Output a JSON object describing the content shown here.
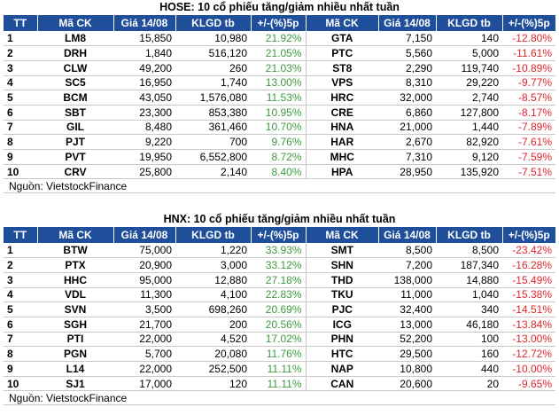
{
  "headers": [
    "TT",
    "Mã CK",
    "Giá 14/08",
    "KLGD tb",
    "+/-(%)5p",
    "Mã CK",
    "Giá 14/08",
    "KLGD tb",
    "+/-(%)5p"
  ],
  "hose": {
    "title": "HOSE: 10 cổ phiếu tăng/giảm nhiều nhất tuần",
    "source": "Nguồn: VietstockFinance",
    "rows": [
      {
        "tt": "1",
        "up_code": "LM8",
        "up_price": "15,850",
        "up_vol": "10,980",
        "up_pct": "21.92%",
        "dn_code": "GTA",
        "dn_price": "7,150",
        "dn_vol": "140",
        "dn_pct": "-12.80%"
      },
      {
        "tt": "2",
        "up_code": "DRH",
        "up_price": "1,840",
        "up_vol": "516,120",
        "up_pct": "21.05%",
        "dn_code": "PTC",
        "dn_price": "5,560",
        "dn_vol": "5,000",
        "dn_pct": "-11.61%"
      },
      {
        "tt": "3",
        "up_code": "CLW",
        "up_price": "49,200",
        "up_vol": "260",
        "up_pct": "21.03%",
        "dn_code": "ST8",
        "dn_price": "2,290",
        "dn_vol": "119,740",
        "dn_pct": "-10.89%"
      },
      {
        "tt": "4",
        "up_code": "SC5",
        "up_price": "16,950",
        "up_vol": "1,740",
        "up_pct": "13.00%",
        "dn_code": "VPS",
        "dn_price": "8,310",
        "dn_vol": "29,220",
        "dn_pct": "-9.77%"
      },
      {
        "tt": "5",
        "up_code": "BCM",
        "up_price": "43,050",
        "up_vol": "1,576,080",
        "up_pct": "11.53%",
        "dn_code": "HRC",
        "dn_price": "32,000",
        "dn_vol": "2,740",
        "dn_pct": "-8.57%"
      },
      {
        "tt": "6",
        "up_code": "SBT",
        "up_price": "23,300",
        "up_vol": "853,380",
        "up_pct": "10.95%",
        "dn_code": "CRE",
        "dn_price": "6,860",
        "dn_vol": "127,800",
        "dn_pct": "-8.17%"
      },
      {
        "tt": "7",
        "up_code": "GIL",
        "up_price": "8,480",
        "up_vol": "361,460",
        "up_pct": "10.70%",
        "dn_code": "HNA",
        "dn_price": "21,000",
        "dn_vol": "1,440",
        "dn_pct": "-7.89%"
      },
      {
        "tt": "8",
        "up_code": "PJT",
        "up_price": "9,220",
        "up_vol": "700",
        "up_pct": "9.76%",
        "dn_code": "HAR",
        "dn_price": "2,670",
        "dn_vol": "82,920",
        "dn_pct": "-7.61%"
      },
      {
        "tt": "9",
        "up_code": "PVT",
        "up_price": "19,950",
        "up_vol": "6,552,800",
        "up_pct": "8.72%",
        "dn_code": "MHC",
        "dn_price": "7,310",
        "dn_vol": "9,120",
        "dn_pct": "-7.59%"
      },
      {
        "tt": "10",
        "up_code": "CRV",
        "up_price": "25,800",
        "up_vol": "2,140",
        "up_pct": "8.40%",
        "dn_code": "HPA",
        "dn_price": "28,950",
        "dn_vol": "135,920",
        "dn_pct": "-7.51%"
      }
    ]
  },
  "hnx": {
    "title": "HNX: 10 cổ phiếu tăng/giảm nhiều nhất tuần",
    "source": "Nguồn: VietstockFinance",
    "rows": [
      {
        "tt": "1",
        "up_code": "BTW",
        "up_price": "75,000",
        "up_vol": "1,220",
        "up_pct": "33.93%",
        "dn_code": "SMT",
        "dn_price": "8,500",
        "dn_vol": "8,500",
        "dn_pct": "-23.42%"
      },
      {
        "tt": "2",
        "up_code": "PTX",
        "up_price": "20,900",
        "up_vol": "3,000",
        "up_pct": "33.12%",
        "dn_code": "SHN",
        "dn_price": "7,200",
        "dn_vol": "187,340",
        "dn_pct": "-16.28%"
      },
      {
        "tt": "3",
        "up_code": "HHC",
        "up_price": "95,000",
        "up_vol": "12,880",
        "up_pct": "27.18%",
        "dn_code": "THD",
        "dn_price": "138,000",
        "dn_vol": "14,880",
        "dn_pct": "-15.49%"
      },
      {
        "tt": "4",
        "up_code": "VDL",
        "up_price": "11,300",
        "up_vol": "4,100",
        "up_pct": "22.83%",
        "dn_code": "TKU",
        "dn_price": "11,000",
        "dn_vol": "1,040",
        "dn_pct": "-15.38%"
      },
      {
        "tt": "5",
        "up_code": "SVN",
        "up_price": "3,500",
        "up_vol": "698,260",
        "up_pct": "20.69%",
        "dn_code": "PJC",
        "dn_price": "32,400",
        "dn_vol": "340",
        "dn_pct": "-14.51%"
      },
      {
        "tt": "6",
        "up_code": "SGH",
        "up_price": "21,700",
        "up_vol": "200",
        "up_pct": "20.56%",
        "dn_code": "ICG",
        "dn_price": "13,000",
        "dn_vol": "46,180",
        "dn_pct": "-13.84%"
      },
      {
        "tt": "7",
        "up_code": "PTI",
        "up_price": "22,000",
        "up_vol": "4,520",
        "up_pct": "17.02%",
        "dn_code": "PHN",
        "dn_price": "52,200",
        "dn_vol": "100",
        "dn_pct": "-13.00%"
      },
      {
        "tt": "8",
        "up_code": "PGN",
        "up_price": "5,700",
        "up_vol": "20,080",
        "up_pct": "11.76%",
        "dn_code": "HTC",
        "dn_price": "29,500",
        "dn_vol": "160",
        "dn_pct": "-12.72%"
      },
      {
        "tt": "9",
        "up_code": "L14",
        "up_price": "22,000",
        "up_vol": "252,500",
        "up_pct": "11.11%",
        "dn_code": "NAP",
        "dn_price": "10,800",
        "dn_vol": "440",
        "dn_pct": "-10.00%"
      },
      {
        "tt": "10",
        "up_code": "SJ1",
        "up_price": "17,000",
        "up_vol": "120",
        "up_pct": "11.11%",
        "dn_code": "CAN",
        "dn_price": "20,600",
        "dn_vol": "20",
        "dn_pct": "-9.65%"
      }
    ]
  }
}
